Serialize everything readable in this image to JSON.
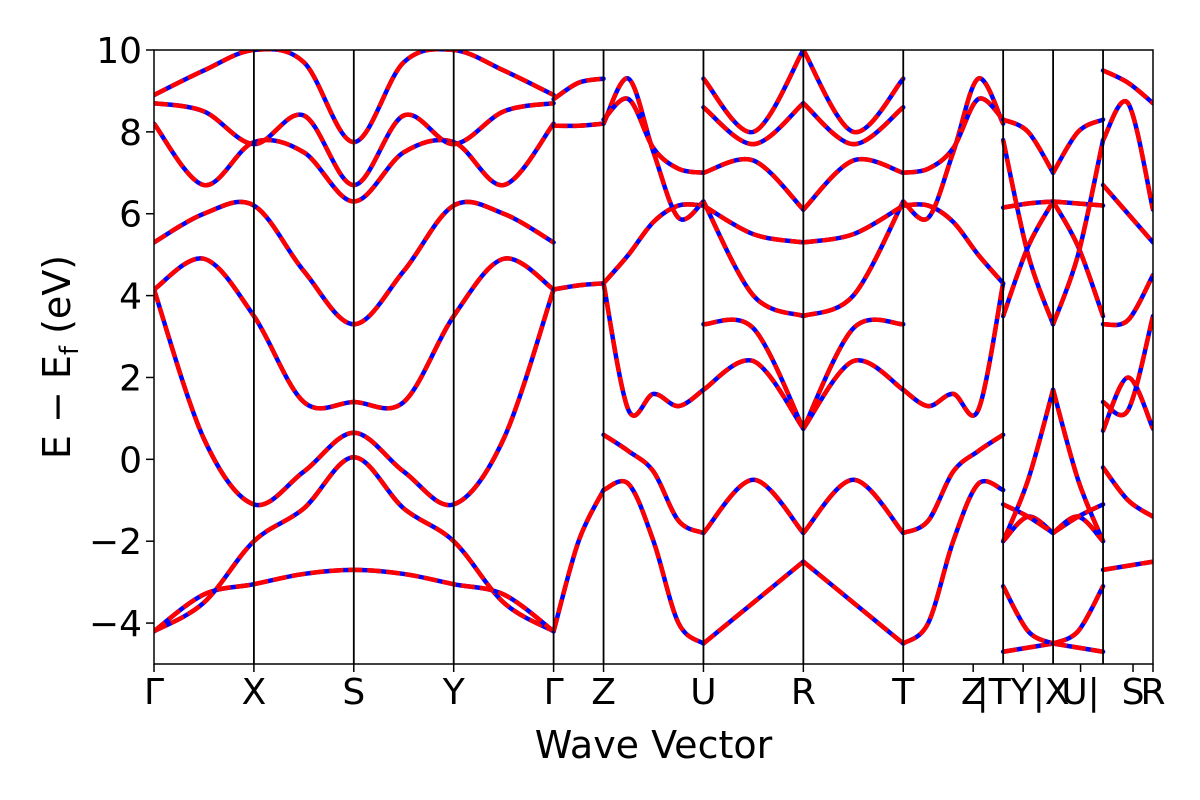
{
  "chart_data": {
    "type": "line",
    "title": "",
    "xlabel": "Wave Vector",
    "ylabel": "E − E",
    "ylabel_sub": "f",
    "ylabel_unit": " (eV)",
    "ylim": [
      -5,
      10
    ],
    "yticks": [
      -4,
      -2,
      0,
      2,
      4,
      6,
      8,
      10
    ],
    "ytick_labels": [
      "−4",
      "−2",
      "0",
      "2",
      "4",
      "6",
      "8",
      "10"
    ],
    "xlim": [
      0,
      20
    ],
    "kpoint_ticks": [
      {
        "x": 0,
        "label": "Γ"
      },
      {
        "x": 2,
        "label": "X"
      },
      {
        "x": 4,
        "label": "S"
      },
      {
        "x": 6,
        "label": "Y"
      },
      {
        "x": 8,
        "label": "Γ"
      },
      {
        "x": 9,
        "label": "Z"
      },
      {
        "x": 11,
        "label": "U"
      },
      {
        "x": 13,
        "label": "R"
      },
      {
        "x": 15,
        "label": "T"
      },
      {
        "x": 16.4,
        "label": "Z"
      },
      {
        "x": 17.4,
        "label": "|TY|X"
      },
      {
        "x": 18.55,
        "label": "U|"
      },
      {
        "x": 19.6,
        "label": "S"
      },
      {
        "x": 20,
        "label": "R"
      }
    ],
    "vlines": [
      2,
      4,
      6,
      8,
      9,
      11,
      13,
      15,
      17,
      18,
      19
    ],
    "grid": false,
    "series_styles": [
      {
        "color": "#0000ff",
        "dash": "solid"
      },
      {
        "color": "#ff0000",
        "dash": "dashed"
      }
    ],
    "segments": [
      {
        "start": 0,
        "end": 8,
        "bands": [
          {
            "x": [
              0,
              1,
              2,
              3,
              4,
              5,
              6,
              7,
              8
            ],
            "y": [
              -4.2,
              -3.5,
              -2.0,
              -1.2,
              0.05,
              -1.2,
              -2.0,
              -3.5,
              -4.2
            ]
          },
          {
            "x": [
              0,
              1,
              2,
              3,
              4,
              5,
              6,
              7,
              8
            ],
            "y": [
              -4.2,
              -3.3,
              -3.05,
              -2.8,
              -2.7,
              -2.8,
              -3.05,
              -3.3,
              -4.2
            ]
          },
          {
            "x": [
              0,
              1,
              2,
              3,
              4,
              5,
              6,
              7,
              8
            ],
            "y": [
              4.15,
              0.5,
              -1.1,
              -0.3,
              0.65,
              -0.3,
              -1.1,
              0.5,
              4.15
            ]
          },
          {
            "x": [
              0,
              1,
              2,
              3,
              4,
              5,
              6,
              7,
              8
            ],
            "y": [
              4.15,
              4.9,
              3.5,
              1.4,
              1.4,
              1.4,
              3.5,
              4.9,
              4.15
            ]
          },
          {
            "x": [
              0,
              1,
              2,
              3,
              4,
              5,
              6,
              7,
              8
            ],
            "y": [
              5.3,
              6.0,
              6.2,
              4.6,
              3.3,
              4.6,
              6.2,
              6.0,
              5.3
            ]
          },
          {
            "x": [
              0,
              1,
              2,
              3,
              4,
              5,
              6,
              7,
              8
            ],
            "y": [
              8.2,
              6.7,
              7.75,
              7.5,
              6.3,
              7.5,
              7.75,
              6.7,
              8.2
            ]
          },
          {
            "x": [
              0,
              1,
              2,
              3,
              4,
              5,
              6,
              7,
              8
            ],
            "y": [
              8.7,
              8.5,
              7.7,
              8.4,
              6.7,
              8.4,
              7.7,
              8.5,
              8.7
            ]
          },
          {
            "x": [
              0,
              1,
              2,
              3,
              4,
              5,
              6,
              7,
              8
            ],
            "y": [
              8.9,
              9.5,
              10.0,
              9.7,
              7.75,
              9.7,
              10.0,
              9.5,
              8.9
            ]
          }
        ]
      },
      {
        "start": 8,
        "end": 9,
        "bands": [
          {
            "x": [
              8,
              8.5,
              9
            ],
            "y": [
              -4.2,
              -2.0,
              -0.75
            ]
          },
          {
            "x": [
              8,
              8.5,
              9
            ],
            "y": [
              4.15,
              4.25,
              4.3
            ]
          },
          {
            "x": [
              8,
              8.5,
              9
            ],
            "y": [
              8.15,
              8.15,
              8.2
            ]
          },
          {
            "x": [
              8,
              8.5,
              9
            ],
            "y": [
              8.8,
              9.2,
              9.3
            ]
          }
        ]
      },
      {
        "start": 9,
        "end": 11,
        "bands": [
          {
            "x": [
              9,
              9.5,
              10,
              10.5,
              11
            ],
            "y": [
              -0.75,
              -0.6,
              -2.0,
              -4.0,
              -4.5
            ]
          },
          {
            "x": [
              9,
              9.5,
              10,
              10.5,
              11
            ],
            "y": [
              0.6,
              0.2,
              -0.3,
              -1.5,
              -1.8
            ]
          },
          {
            "x": [
              9,
              9.5,
              10,
              10.5,
              11
            ],
            "y": [
              4.3,
              1.2,
              1.6,
              1.3,
              1.7
            ]
          },
          {
            "x": [
              9,
              9.5,
              10,
              10.5,
              11
            ],
            "y": [
              4.3,
              5.0,
              5.8,
              6.2,
              6.2
            ]
          },
          {
            "x": [
              9,
              9.5,
              10,
              10.5,
              11
            ],
            "y": [
              8.2,
              9.3,
              7.5,
              5.9,
              6.3
            ]
          },
          {
            "x": [
              9,
              9.5,
              10,
              10.5,
              11
            ],
            "y": [
              8.3,
              8.8,
              7.6,
              7.1,
              7.0
            ]
          }
        ]
      },
      {
        "start": 11,
        "end": 13,
        "bands": [
          {
            "x": [
              11,
              12,
              13
            ],
            "y": [
              -4.5,
              -3.5,
              -2.5
            ]
          },
          {
            "x": [
              11,
              12,
              13
            ],
            "y": [
              -1.8,
              -0.5,
              -1.8
            ]
          },
          {
            "x": [
              11,
              12,
              13
            ],
            "y": [
              1.7,
              2.4,
              0.75
            ]
          },
          {
            "x": [
              11,
              12,
              13
            ],
            "y": [
              3.3,
              3.2,
              0.75
            ]
          },
          {
            "x": [
              11,
              12,
              13
            ],
            "y": [
              6.3,
              4.0,
              3.5
            ]
          },
          {
            "x": [
              11,
              12,
              13
            ],
            "y": [
              6.2,
              5.5,
              5.3
            ]
          },
          {
            "x": [
              11,
              12,
              13
            ],
            "y": [
              7.0,
              7.3,
              6.1
            ]
          },
          {
            "x": [
              11,
              12,
              13
            ],
            "y": [
              8.6,
              7.7,
              8.7
            ]
          },
          {
            "x": [
              11,
              12,
              13
            ],
            "y": [
              9.3,
              8.0,
              10.0
            ]
          }
        ]
      },
      {
        "start": 13,
        "end": 15,
        "bands": [
          {
            "x": [
              13,
              14,
              15
            ],
            "y": [
              -2.5,
              -3.5,
              -4.5
            ]
          },
          {
            "x": [
              13,
              14,
              15
            ],
            "y": [
              -1.8,
              -0.5,
              -1.8
            ]
          },
          {
            "x": [
              13,
              14,
              15
            ],
            "y": [
              0.75,
              2.4,
              1.7
            ]
          },
          {
            "x": [
              13,
              14,
              15
            ],
            "y": [
              0.75,
              3.2,
              3.3
            ]
          },
          {
            "x": [
              13,
              14,
              15
            ],
            "y": [
              3.5,
              4.0,
              6.3
            ]
          },
          {
            "x": [
              13,
              14,
              15
            ],
            "y": [
              5.3,
              5.5,
              6.2
            ]
          },
          {
            "x": [
              13,
              14,
              15
            ],
            "y": [
              6.1,
              7.3,
              7.0
            ]
          },
          {
            "x": [
              13,
              14,
              15
            ],
            "y": [
              8.7,
              7.7,
              8.6
            ]
          },
          {
            "x": [
              13,
              14,
              15
            ],
            "y": [
              10.0,
              8.0,
              9.3
            ]
          }
        ]
      },
      {
        "start": 15,
        "end": 17,
        "bands": [
          {
            "x": [
              15,
              15.5,
              16,
              16.5,
              17
            ],
            "y": [
              -4.5,
              -4.0,
              -2.0,
              -0.6,
              -0.75
            ]
          },
          {
            "x": [
              15,
              15.5,
              16,
              16.5,
              17
            ],
            "y": [
              -1.8,
              -1.5,
              -0.3,
              0.2,
              0.6
            ]
          },
          {
            "x": [
              15,
              15.5,
              16,
              16.5,
              17
            ],
            "y": [
              1.7,
              1.3,
              1.6,
              1.2,
              4.3
            ]
          },
          {
            "x": [
              15,
              15.5,
              16,
              16.5,
              17
            ],
            "y": [
              6.2,
              6.2,
              5.8,
              5.0,
              4.3
            ]
          },
          {
            "x": [
              15,
              15.5,
              16,
              16.5,
              17
            ],
            "y": [
              6.3,
              5.9,
              7.5,
              9.3,
              8.2
            ]
          },
          {
            "x": [
              15,
              15.5,
              16,
              16.5,
              17
            ],
            "y": [
              7.0,
              7.1,
              7.6,
              8.8,
              8.3
            ]
          }
        ]
      },
      {
        "start": 17,
        "end": 18,
        "bands": [
          {
            "x": [
              17,
              17.5,
              18
            ],
            "y": [
              -4.7,
              -4.6,
              -4.5
            ]
          },
          {
            "x": [
              17,
              17.5,
              18
            ],
            "y": [
              -3.1,
              -4.2,
              -4.5
            ]
          },
          {
            "x": [
              17,
              17.5,
              18
            ],
            "y": [
              -2.0,
              -1.4,
              -1.8
            ]
          },
          {
            "x": [
              17,
              17.5,
              18
            ],
            "y": [
              -1.1,
              -1.4,
              -1.8
            ]
          },
          {
            "x": [
              17,
              17.5,
              18
            ],
            "y": [
              -2.0,
              -0.5,
              1.7
            ]
          },
          {
            "x": [
              17,
              17.5,
              18
            ],
            "y": [
              3.5,
              5.2,
              6.3
            ]
          },
          {
            "x": [
              17,
              17.5,
              18
            ],
            "y": [
              6.15,
              6.25,
              6.3
            ]
          },
          {
            "x": [
              17,
              17.5,
              18
            ],
            "y": [
              7.8,
              5.0,
              3.3
            ]
          },
          {
            "x": [
              17,
              17.5,
              18
            ],
            "y": [
              8.3,
              8.0,
              7.0
            ]
          }
        ]
      },
      {
        "start": 18,
        "end": 19,
        "bands": [
          {
            "x": [
              18,
              18.5,
              19
            ],
            "y": [
              -4.5,
              -4.6,
              -4.7
            ]
          },
          {
            "x": [
              18,
              18.5,
              19
            ],
            "y": [
              -4.5,
              -4.2,
              -3.1
            ]
          },
          {
            "x": [
              18,
              18.5,
              19
            ],
            "y": [
              -1.8,
              -1.4,
              -2.0
            ]
          },
          {
            "x": [
              18,
              18.5,
              19
            ],
            "y": [
              -1.8,
              -1.4,
              -1.1
            ]
          },
          {
            "x": [
              18,
              18.5,
              19
            ],
            "y": [
              1.7,
              -0.5,
              -2.0
            ]
          },
          {
            "x": [
              18,
              18.5,
              19
            ],
            "y": [
              6.3,
              5.2,
              3.5
            ]
          },
          {
            "x": [
              18,
              18.5,
              19
            ],
            "y": [
              6.3,
              6.25,
              6.2
            ]
          },
          {
            "x": [
              18,
              18.5,
              19
            ],
            "y": [
              3.3,
              5.0,
              7.8
            ]
          },
          {
            "x": [
              18,
              18.5,
              19
            ],
            "y": [
              7.0,
              8.0,
              8.3
            ]
          }
        ]
      },
      {
        "start": 19,
        "end": 20,
        "bands": [
          {
            "x": [
              19,
              19.5,
              20
            ],
            "y": [
              -2.7,
              -2.6,
              -2.5
            ]
          },
          {
            "x": [
              19,
              19.5,
              20
            ],
            "y": [
              -0.2,
              -1.0,
              -1.4
            ]
          },
          {
            "x": [
              19,
              19.5,
              20
            ],
            "y": [
              0.7,
              2.0,
              0.75
            ]
          },
          {
            "x": [
              19,
              19.5,
              20
            ],
            "y": [
              1.4,
              1.2,
              3.5
            ]
          },
          {
            "x": [
              19,
              19.5,
              20
            ],
            "y": [
              3.3,
              3.4,
              4.5
            ]
          },
          {
            "x": [
              19,
              19.5,
              20
            ],
            "y": [
              6.7,
              6.0,
              5.3
            ]
          },
          {
            "x": [
              19,
              19.5,
              20
            ],
            "y": [
              7.8,
              8.7,
              6.1
            ]
          },
          {
            "x": [
              19,
              19.5,
              20
            ],
            "y": [
              9.5,
              9.2,
              8.7
            ]
          }
        ]
      }
    ]
  }
}
